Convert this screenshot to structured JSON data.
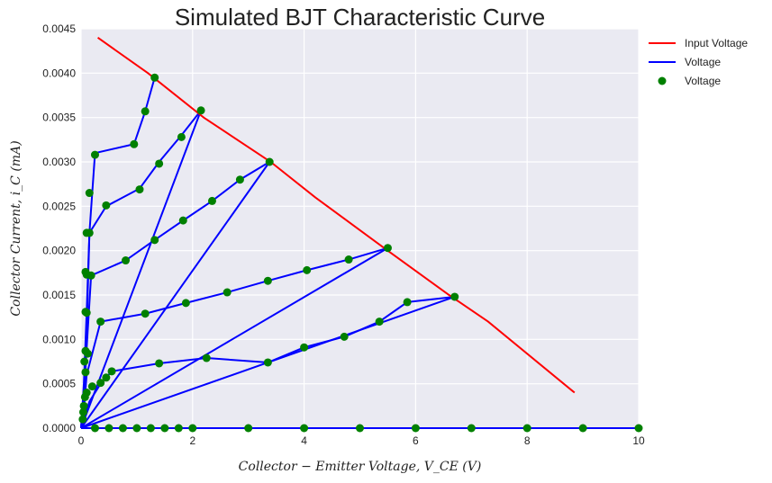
{
  "chart_data": {
    "type": "line",
    "title": "Simulated BJT Characteristic Curve",
    "xlabel": "Collector − Emitter Voltage,  V_CE (V)",
    "ylabel": "Collector Current,  i_C (mA)",
    "xlim": [
      0,
      10
    ],
    "ylim": [
      0,
      0.0045
    ],
    "xticks": [
      "0",
      "2",
      "4",
      "6",
      "8",
      "10"
    ],
    "yticks": [
      "0.0000",
      "0.0005",
      "0.0010",
      "0.0015",
      "0.0020",
      "0.0025",
      "0.0030",
      "0.0035",
      "0.0040",
      "0.0045"
    ],
    "grid": true,
    "legend_position": "outside-top-right",
    "colors": {
      "input": "#ff0000",
      "line": "#0000ff",
      "points": "#008000",
      "background": "#eaeaf2"
    },
    "series": [
      {
        "name": "Input Voltage",
        "style": "line",
        "x": [
          0.3,
          1.2,
          2.2,
          3.4,
          4.2,
          5.5,
          6.6,
          7.3,
          8.85
        ],
        "y": [
          0.0044,
          0.004,
          0.0035,
          0.003,
          0.0026,
          0.002,
          0.0015,
          0.0012,
          0.0004
        ]
      },
      {
        "name": " Voltage",
        "style": "line",
        "polylines": [
          {
            "x": [
              0,
              0.05,
              0.1,
              0.15,
              0.25,
              0.95,
              1.15,
              1.32
            ],
            "y": [
              0,
              0.0005,
              0.0013,
              0.0022,
              0.0031,
              0.0032,
              0.00357,
              0.00395
            ]
          },
          {
            "x": [
              0,
              0.05,
              0.1,
              0.15,
              0.45,
              1.05,
              1.4,
              1.8,
              2.15
            ],
            "y": [
              0,
              0.0004,
              0.0011,
              0.0022,
              0.0025,
              0.0027,
              0.003,
              0.0033,
              0.00358
            ]
          },
          {
            "x": [
              0,
              0.05,
              0.1,
              0.18,
              0.8,
              1.32,
              1.83,
              2.35,
              2.85,
              3.38
            ],
            "y": [
              0,
              0.0003,
              0.0009,
              0.00172,
              0.00189,
              0.00212,
              0.00234,
              0.00256,
              0.0028,
              0.003
            ]
          },
          {
            "x": [
              0,
              0.05,
              0.1,
              0.35,
              1.15,
              1.88,
              2.62,
              3.35,
              4.05,
              4.8,
              5.5
            ],
            "y": [
              0,
              0.0002,
              0.0006,
              0.0012,
              0.00129,
              0.00141,
              0.00153,
              0.00166,
              0.00178,
              0.0019,
              0.00203
            ]
          },
          {
            "x": [
              0,
              0.05,
              0.15,
              0.35,
              0.55,
              1.4,
              2.25,
              3.35,
              4.0,
              4.72,
              5.35,
              5.85,
              6.7
            ],
            "y": [
              0,
              0.0001,
              0.0003,
              0.0005,
              0.00064,
              0.00073,
              0.00079,
              0.00074,
              0.00091,
              0.00103,
              0.0012,
              0.00142,
              0.00148
            ]
          },
          {
            "x": [
              0,
              2.15
            ],
            "y": [
              0,
              0.00358
            ]
          },
          {
            "x": [
              0,
              3.38
            ],
            "y": [
              0,
              0.003
            ]
          },
          {
            "x": [
              0,
              5.5
            ],
            "y": [
              0,
              0.00203
            ]
          },
          {
            "x": [
              0,
              6.7
            ],
            "y": [
              0,
              0.00148
            ]
          },
          {
            "x": [
              0,
              10
            ],
            "y": [
              0,
              0
            ]
          }
        ]
      },
      {
        "name": " Voltage",
        "style": "markers",
        "x": [
          1.32,
          1.15,
          0.95,
          0.25,
          0.15,
          0.1,
          0.08,
          2.15,
          1.8,
          1.4,
          1.05,
          0.45,
          0.15,
          0.1,
          0.08,
          3.38,
          2.85,
          2.35,
          1.83,
          1.32,
          0.8,
          0.18,
          0.1,
          0.08,
          0.06,
          5.5,
          4.8,
          4.05,
          3.35,
          2.62,
          1.88,
          1.15,
          0.35,
          0.12,
          0.08,
          6.7,
          5.85,
          5.35,
          4.72,
          4.0,
          3.35,
          2.25,
          1.4,
          0.55,
          0.45,
          0.35,
          0.2,
          0.1,
          0.07,
          0.05,
          0.04,
          0.03,
          0.25,
          0.5,
          0.75,
          1.0,
          1.25,
          1.5,
          1.75,
          2.0,
          3.0,
          4.0,
          5.0,
          6.0,
          7.0,
          8.0,
          9.0,
          10.0
        ],
        "y": [
          0.00395,
          0.00357,
          0.0032,
          0.00308,
          0.00265,
          0.0022,
          0.00176,
          0.00358,
          0.00328,
          0.00298,
          0.00269,
          0.00251,
          0.0022,
          0.00173,
          0.00131,
          0.003,
          0.0028,
          0.00256,
          0.00234,
          0.00212,
          0.00189,
          0.00172,
          0.0013,
          0.00087,
          0.00075,
          0.00203,
          0.0019,
          0.00178,
          0.00166,
          0.00153,
          0.00141,
          0.00129,
          0.0012,
          0.00084,
          0.00063,
          0.00148,
          0.00142,
          0.0012,
          0.00103,
          0.00091,
          0.00074,
          0.00079,
          0.00073,
          0.00064,
          0.00057,
          0.00051,
          0.00047,
          0.0004,
          0.00035,
          0.00025,
          0.00018,
          0.0001,
          0,
          0,
          0,
          0,
          0,
          0,
          0,
          0,
          0,
          0,
          0,
          0,
          0,
          0,
          0,
          0
        ]
      }
    ]
  }
}
